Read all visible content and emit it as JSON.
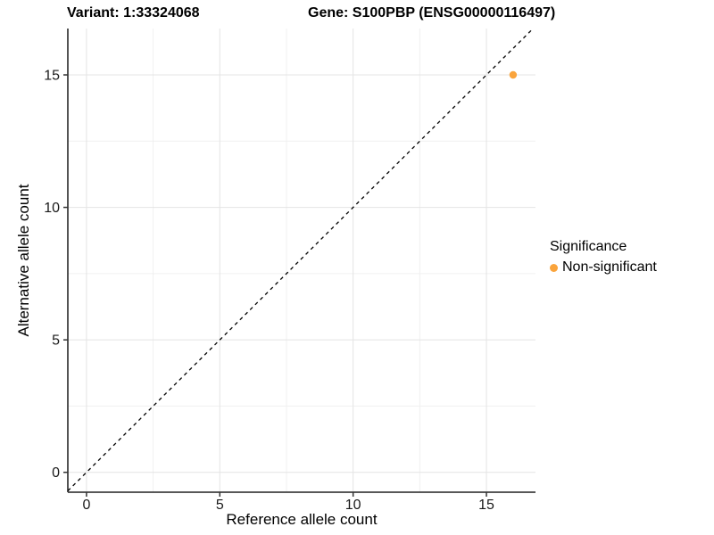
{
  "chart_data": {
    "type": "scatter",
    "title": {
      "variant": "Variant: 1:33324068",
      "gene": "Gene: S100PBP (ENSG00000116497)"
    },
    "xlabel": "Reference allele count",
    "ylabel": "Alternative allele count",
    "xlim": [
      -0.7,
      16.84
    ],
    "ylim": [
      -0.75,
      16.75
    ],
    "x_ticks": [
      0,
      5,
      10,
      15
    ],
    "y_ticks": [
      0,
      5,
      10,
      15
    ],
    "x_minor_ticks": [
      2.5,
      7.5,
      12.5
    ],
    "y_minor_ticks": [
      2.5,
      7.5,
      12.5
    ],
    "grid": "major+minor",
    "identity_line": {
      "equation": "y = x",
      "style": "dashed",
      "color": "#000000"
    },
    "series": [
      {
        "name": "Non-significant",
        "color": "#FAA43C",
        "points": [
          {
            "x": 16,
            "y": 15
          }
        ]
      }
    ],
    "legend": {
      "title": "Significance",
      "position": "right",
      "entries": [
        {
          "label": "Non-significant",
          "color": "#FAA43C"
        }
      ]
    },
    "colors": {
      "background": "#FFFFFF",
      "axis_line": "#404040",
      "tick_mark": "#333333",
      "tick_label": "#1A1A1A",
      "grid_major": "#E4E4E4",
      "grid_minor": "#F0F0F0"
    }
  }
}
